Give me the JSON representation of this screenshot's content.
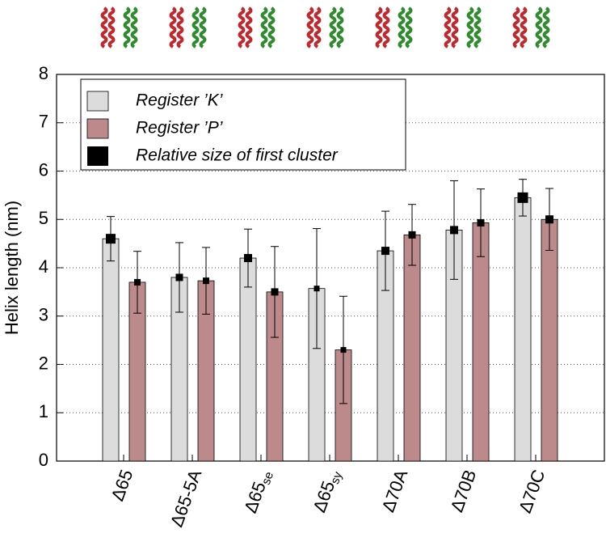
{
  "chart_data": {
    "type": "bar",
    "ylabel": "Helix length (nm)",
    "categories": [
      "Δ65",
      "Δ65-5A",
      "Δ65",
      "Δ65",
      "Δ70A",
      "Δ70B",
      "Δ70C"
    ],
    "category_subscripts": [
      null,
      null,
      "se",
      "sy",
      null,
      null,
      null
    ],
    "series": [
      {
        "name": "Register ’K’",
        "color": "#dcdcdc",
        "values": [
          4.6,
          3.8,
          4.2,
          3.57,
          4.35,
          4.78,
          5.45
        ],
        "errors": [
          0.46,
          0.72,
          0.6,
          1.24,
          0.82,
          1.02,
          0.38
        ],
        "cluster_sizes": [
          0.9,
          0.6,
          0.7,
          0.4,
          0.7,
          0.7,
          1.0
        ]
      },
      {
        "name": "Register ’P’",
        "color": "#bc8a8a",
        "values": [
          3.7,
          3.73,
          3.5,
          2.3,
          4.68,
          4.93,
          5.0
        ],
        "errors": [
          0.64,
          0.69,
          0.94,
          1.11,
          0.63,
          0.7,
          0.64
        ],
        "cluster_sizes": [
          0.5,
          0.5,
          0.6,
          0.4,
          0.6,
          0.6,
          0.7
        ]
      }
    ],
    "marker_legend": "Relative size of first cluster",
    "marker_color": "#000000",
    "ylim": [
      0,
      8
    ],
    "yticks": [
      0,
      1,
      2,
      3,
      4,
      5,
      6,
      7,
      8
    ],
    "grid": true
  }
}
